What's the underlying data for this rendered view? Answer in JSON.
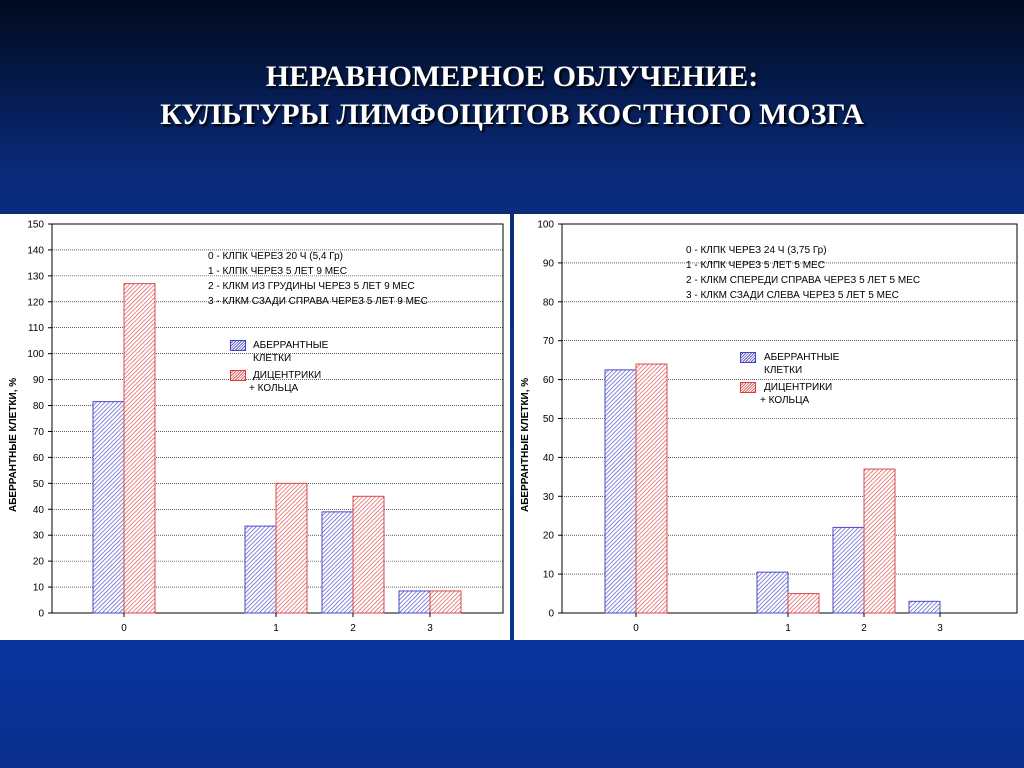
{
  "slide": {
    "title_line1": "НЕРАВНОМЕРНОЕ ОБЛУЧЕНИЕ:",
    "title_line2": "КУЛЬТУРЫ ЛИМФОЦИТОВ КОСТНОГО МОЗГА"
  },
  "colors": {
    "series1": "#4a4ac8",
    "series2": "#d84a4a",
    "grid": "#000000"
  },
  "chart_data": [
    {
      "type": "bar",
      "ylabel": "АБЕРРАНТНЫЕ КЛЕТКИ, %",
      "xlabel": "",
      "ylim": [
        0,
        150
      ],
      "ytick_step": 10,
      "grid": true,
      "categories": [
        "0",
        "1",
        "2",
        "3"
      ],
      "series": [
        {
          "name": "АБЕРРАНТНЫЕ КЛЕТКИ",
          "name_line1": "АБЕРРАНТНЫЕ",
          "name_line2": "КЛЕТКИ",
          "values": [
            81.5,
            33.5,
            39,
            8.5
          ]
        },
        {
          "name": "ДИЦЕНТРИКИ + КОЛЬЦА",
          "name_line1": "ДИЦЕНТРИКИ",
          "name_line2": "+ КОЛЬЦА",
          "values": [
            127,
            50,
            45,
            8.5
          ]
        }
      ],
      "annotation_lines": [
        "0 - КЛПК ЧЕРЕЗ 20 Ч (5,4 Гр)",
        "1 - КЛПК ЧЕРЕЗ 5 ЛЕТ 9 МЕС",
        "2 - КЛКМ ИЗ ГРУДИНЫ ЧЕРЕЗ 5 ЛЕТ 9 МЕС",
        "3 - КЛКМ СЗАДИ СПРАВА ЧЕРЕЗ 5 ЛЕТ 9 МЕС"
      ]
    },
    {
      "type": "bar",
      "ylabel": "АБЕРРАНТНЫЕ КЛЕТКИ, %",
      "xlabel": "",
      "ylim": [
        0,
        100
      ],
      "ytick_step": 10,
      "grid": true,
      "categories": [
        "0",
        "1",
        "2",
        "3"
      ],
      "series": [
        {
          "name": "АБЕРРАНТНЫЕ КЛЕТКИ",
          "name_line1": "АБЕРРАНТНЫЕ",
          "name_line2": "КЛЕТКИ",
          "values": [
            62.5,
            10.5,
            22,
            3
          ]
        },
        {
          "name": "ДИЦЕНТРИКИ + КОЛЬЦА",
          "name_line1": "ДИЦЕНТРИКИ",
          "name_line2": "+ КОЛЬЦА",
          "values": [
            64,
            5,
            37,
            0
          ]
        }
      ],
      "annotation_lines": [
        "0 - КЛПК ЧЕРЕЗ 24 Ч (3,75 Гр)",
        "1 - КЛПК ЧЕРЕЗ 5 ЛЕТ 5 МЕС",
        "2 - КЛКМ СПЕРЕДИ СПРАВА ЧЕРЕЗ 5 ЛЕТ 5 МЕС",
        "3 - КЛКМ СЗАДИ СЛЕВА ЧЕРЕЗ 5 ЛЕТ 5 МЕС"
      ]
    }
  ]
}
